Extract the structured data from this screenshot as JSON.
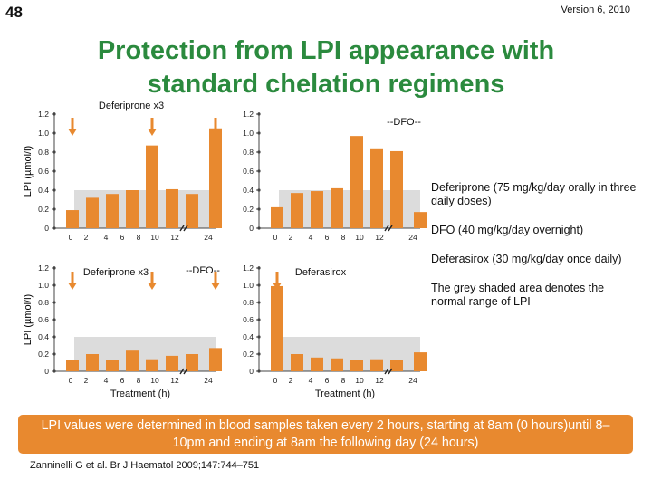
{
  "slide_number": "48",
  "version": "Version 6, 2010",
  "title_lines": [
    "Protection from LPI appearance with",
    "standard chelation regimens"
  ],
  "y_axis_label": "LPI (µmol/l)",
  "x_axis_label": "Treatment (h)",
  "colors": {
    "bar": "#e8892f",
    "shade": "#dcdcdc",
    "arrow": "#e8892f",
    "title": "#2b8a3e",
    "footer": "#e8892f"
  },
  "legend": [
    "Deferiprone (75 mg/kg/day orally in three daily doses)",
    "DFO (40 mg/kg/day overnight)",
    "Deferasirox (30 mg/kg/day once daily)",
    "The grey shaded area denotes the normal range of LPI"
  ],
  "footer_text": "LPI values were determined in blood samples taken every 2 hours, starting at 8am (0 hours)until 8–10pm and ending at 8am the following day (24 hours)",
  "citation": "Zanninelli G et al. Br J Haematol 2009;147:744–751",
  "chart_data": [
    {
      "type": "bar",
      "position": "top-left",
      "title": "Deferiprone x3",
      "dfo_label": "",
      "ylim": [
        0,
        1.2
      ],
      "yticks": [
        "0",
        "0.2",
        "0.4",
        "0.6",
        "0.8",
        "1.0",
        "1.2"
      ],
      "normal_range": [
        0,
        0.4
      ],
      "categories": [
        "0",
        "2",
        "4",
        "6",
        "8",
        "10",
        "12",
        "24"
      ],
      "values": [
        0.19,
        0.32,
        0.36,
        0.4,
        0.87,
        0.41,
        0.36,
        1.05
      ],
      "dose_arrows_at": [
        "0",
        "8",
        "24"
      ],
      "ylabel": "LPI (µmol/l)",
      "xlabel": ""
    },
    {
      "type": "bar",
      "position": "top-right",
      "title": "",
      "dfo_label": "--DFO--",
      "ylim": [
        0,
        1.2
      ],
      "yticks": [
        "0",
        "0.2",
        "0.4",
        "0.6",
        "0.8",
        "1.0",
        "1.2"
      ],
      "normal_range": [
        0,
        0.4
      ],
      "categories": [
        "0",
        "2",
        "4",
        "6",
        "8",
        "10",
        "12",
        "24"
      ],
      "values": [
        0.22,
        0.37,
        0.39,
        0.42,
        0.97,
        0.84,
        0.81,
        0.17
      ],
      "dose_arrows_at": [],
      "ylabel": "",
      "xlabel": ""
    },
    {
      "type": "bar",
      "position": "bottom-left",
      "title": "Deferiprone x3",
      "dfo_label": "--DFO--",
      "ylim": [
        0,
        1.2
      ],
      "yticks": [
        "0",
        "0.2",
        "0.4",
        "0.6",
        "0.8",
        "1.0",
        "1.2"
      ],
      "normal_range": [
        0,
        0.4
      ],
      "categories": [
        "0",
        "2",
        "4",
        "6",
        "8",
        "10",
        "12",
        "24"
      ],
      "values": [
        0.13,
        0.2,
        0.13,
        0.24,
        0.14,
        0.18,
        0.2,
        0.27
      ],
      "dose_arrows_at": [
        "0",
        "8",
        "24"
      ],
      "ylabel": "LPI (µmol/l)",
      "xlabel": "Treatment (h)"
    },
    {
      "type": "bar",
      "position": "bottom-right",
      "title": "Deferasirox",
      "dfo_label": "",
      "ylim": [
        0,
        1.2
      ],
      "yticks": [
        "0",
        "0.2",
        "0.4",
        "0.6",
        "0.8",
        "1.0",
        "1.2"
      ],
      "normal_range": [
        0,
        0.4
      ],
      "categories": [
        "0",
        "2",
        "4",
        "6",
        "8",
        "10",
        "12",
        "24"
      ],
      "values": [
        0.99,
        0.2,
        0.16,
        0.15,
        0.13,
        0.14,
        0.13,
        0.22
      ],
      "dose_arrows_at": [
        "0"
      ],
      "ylabel": "",
      "xlabel": "Treatment (h)"
    }
  ]
}
